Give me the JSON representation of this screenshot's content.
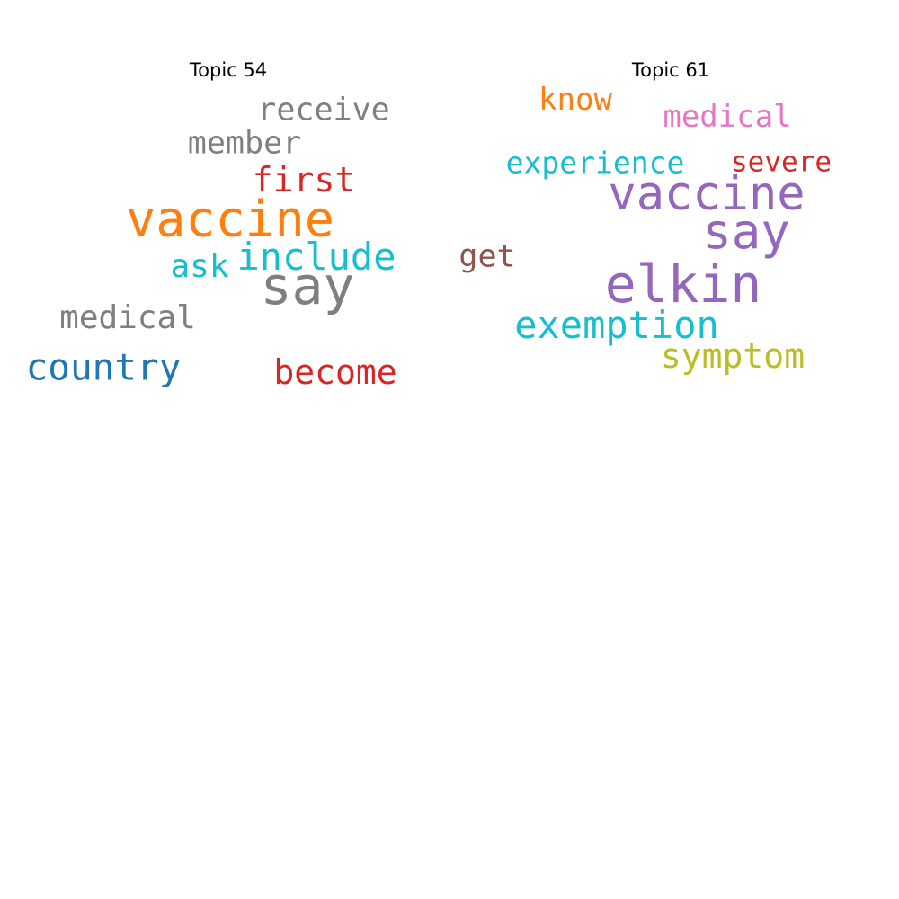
{
  "clouds": [
    {
      "title": "Topic 54",
      "words": [
        {
          "text": "receive",
          "color": "#7f7f7f"
        },
        {
          "text": "member",
          "color": "#7f7f7f"
        },
        {
          "text": "first",
          "color": "#d62728"
        },
        {
          "text": "vaccine",
          "color": "#ff7f0e"
        },
        {
          "text": "include",
          "color": "#17becf"
        },
        {
          "text": "ask",
          "color": "#17becf"
        },
        {
          "text": "say",
          "color": "#7f7f7f"
        },
        {
          "text": "medical",
          "color": "#7f7f7f"
        },
        {
          "text": "country",
          "color": "#1f77b4"
        },
        {
          "text": "become",
          "color": "#d62728"
        }
      ]
    },
    {
      "title": "Topic 61",
      "words": [
        {
          "text": "know",
          "color": "#ff7f0e"
        },
        {
          "text": "medical",
          "color": "#e377c2"
        },
        {
          "text": "experience",
          "color": "#17becf"
        },
        {
          "text": "severe",
          "color": "#d62728"
        },
        {
          "text": "vaccine",
          "color": "#9467bd"
        },
        {
          "text": "say",
          "color": "#9467bd"
        },
        {
          "text": "get",
          "color": "#8c564b"
        },
        {
          "text": "elkin",
          "color": "#9467bd"
        },
        {
          "text": "exemption",
          "color": "#17becf"
        },
        {
          "text": "symptom",
          "color": "#bcbd22"
        }
      ]
    }
  ]
}
